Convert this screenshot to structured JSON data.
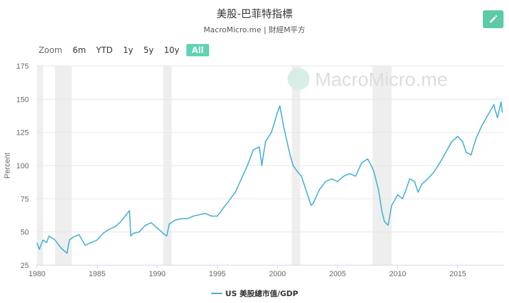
{
  "header": {
    "title": "美股-巴菲特指標",
    "subtitle": "MacroMicro.me | 財經M平方"
  },
  "watermark": {
    "text": "MacroMicro.me"
  },
  "range_selector": {
    "zoom_label": "Zoom",
    "buttons": [
      {
        "label": "6m",
        "active": false
      },
      {
        "label": "YTD",
        "active": false
      },
      {
        "label": "1y",
        "active": false
      },
      {
        "label": "5y",
        "active": false
      },
      {
        "label": "10y",
        "active": false
      },
      {
        "label": "All",
        "active": true
      }
    ]
  },
  "colors": {
    "series": "#45b0d6",
    "accent": "#5fd3b3",
    "edit_button": "#5cc9a7",
    "recession_band": "#eeeeee"
  },
  "chart_data": {
    "type": "line",
    "title": "美股-巴菲特指標",
    "xlabel": "",
    "ylabel": "Percent",
    "xlim": [
      1979.9,
      2018.8
    ],
    "ylim": [
      25,
      175
    ],
    "y_ticks": [
      25,
      50,
      75,
      100,
      125,
      150,
      175
    ],
    "x_ticks": [
      1980,
      1985,
      1990,
      1995,
      2000,
      2005,
      2010,
      2015
    ],
    "grid": true,
    "legend_position": "bottom-center",
    "recession_bands": [
      [
        1980.0,
        1980.5
      ],
      [
        1981.5,
        1982.9
      ],
      [
        1990.5,
        1991.2
      ],
      [
        2001.2,
        2001.9
      ],
      [
        2007.9,
        2009.5
      ]
    ],
    "series": [
      {
        "name": "US 美股總市值/GDP",
        "x": [
          1980.0,
          1980.2,
          1980.5,
          1980.8,
          1981.0,
          1981.5,
          1982.0,
          1982.5,
          1982.7,
          1983.0,
          1983.5,
          1984.0,
          1984.5,
          1985.0,
          1985.5,
          1986.0,
          1986.5,
          1987.0,
          1987.5,
          1987.7,
          1987.8,
          1988.0,
          1988.5,
          1989.0,
          1989.5,
          1990.0,
          1990.5,
          1990.8,
          1991.0,
          1991.5,
          1992.0,
          1992.5,
          1993.0,
          1993.5,
          1994.0,
          1994.5,
          1995.0,
          1995.5,
          1996.0,
          1996.5,
          1997.0,
          1997.5,
          1998.0,
          1998.5,
          1998.7,
          1999.0,
          1999.5,
          2000.0,
          2000.2,
          2000.5,
          2000.8,
          2001.0,
          2001.3,
          2001.7,
          2002.0,
          2002.5,
          2002.8,
          2003.0,
          2003.5,
          2004.0,
          2004.5,
          2005.0,
          2005.5,
          2006.0,
          2006.5,
          2007.0,
          2007.5,
          2007.8,
          2008.0,
          2008.4,
          2008.7,
          2008.9,
          2009.2,
          2009.5,
          2010.0,
          2010.4,
          2010.7,
          2011.0,
          2011.4,
          2011.7,
          2012.0,
          2012.5,
          2013.0,
          2013.5,
          2014.0,
          2014.5,
          2015.0,
          2015.4,
          2015.7,
          2016.1,
          2016.5,
          2017.0,
          2017.5,
          2018.0,
          2018.1,
          2018.3,
          2018.6,
          2018.7
        ],
        "values": [
          42,
          37,
          44,
          42,
          47,
          44,
          38,
          34,
          44,
          46,
          48,
          40,
          42,
          44,
          49,
          52,
          54,
          58,
          64,
          66,
          47,
          49,
          50,
          55,
          57,
          53,
          49,
          47,
          56,
          59,
          60,
          60,
          62,
          63,
          64,
          62,
          62,
          68,
          74,
          80,
          90,
          100,
          112,
          114,
          100,
          118,
          125,
          140,
          145,
          130,
          118,
          110,
          100,
          95,
          92,
          78,
          70,
          72,
          82,
          88,
          90,
          88,
          92,
          94,
          92,
          102,
          105,
          100,
          96,
          82,
          65,
          58,
          55,
          70,
          78,
          75,
          82,
          90,
          88,
          80,
          86,
          90,
          95,
          102,
          110,
          118,
          122,
          118,
          110,
          108,
          120,
          130,
          138,
          146,
          142,
          136,
          148,
          140
        ]
      }
    ]
  }
}
